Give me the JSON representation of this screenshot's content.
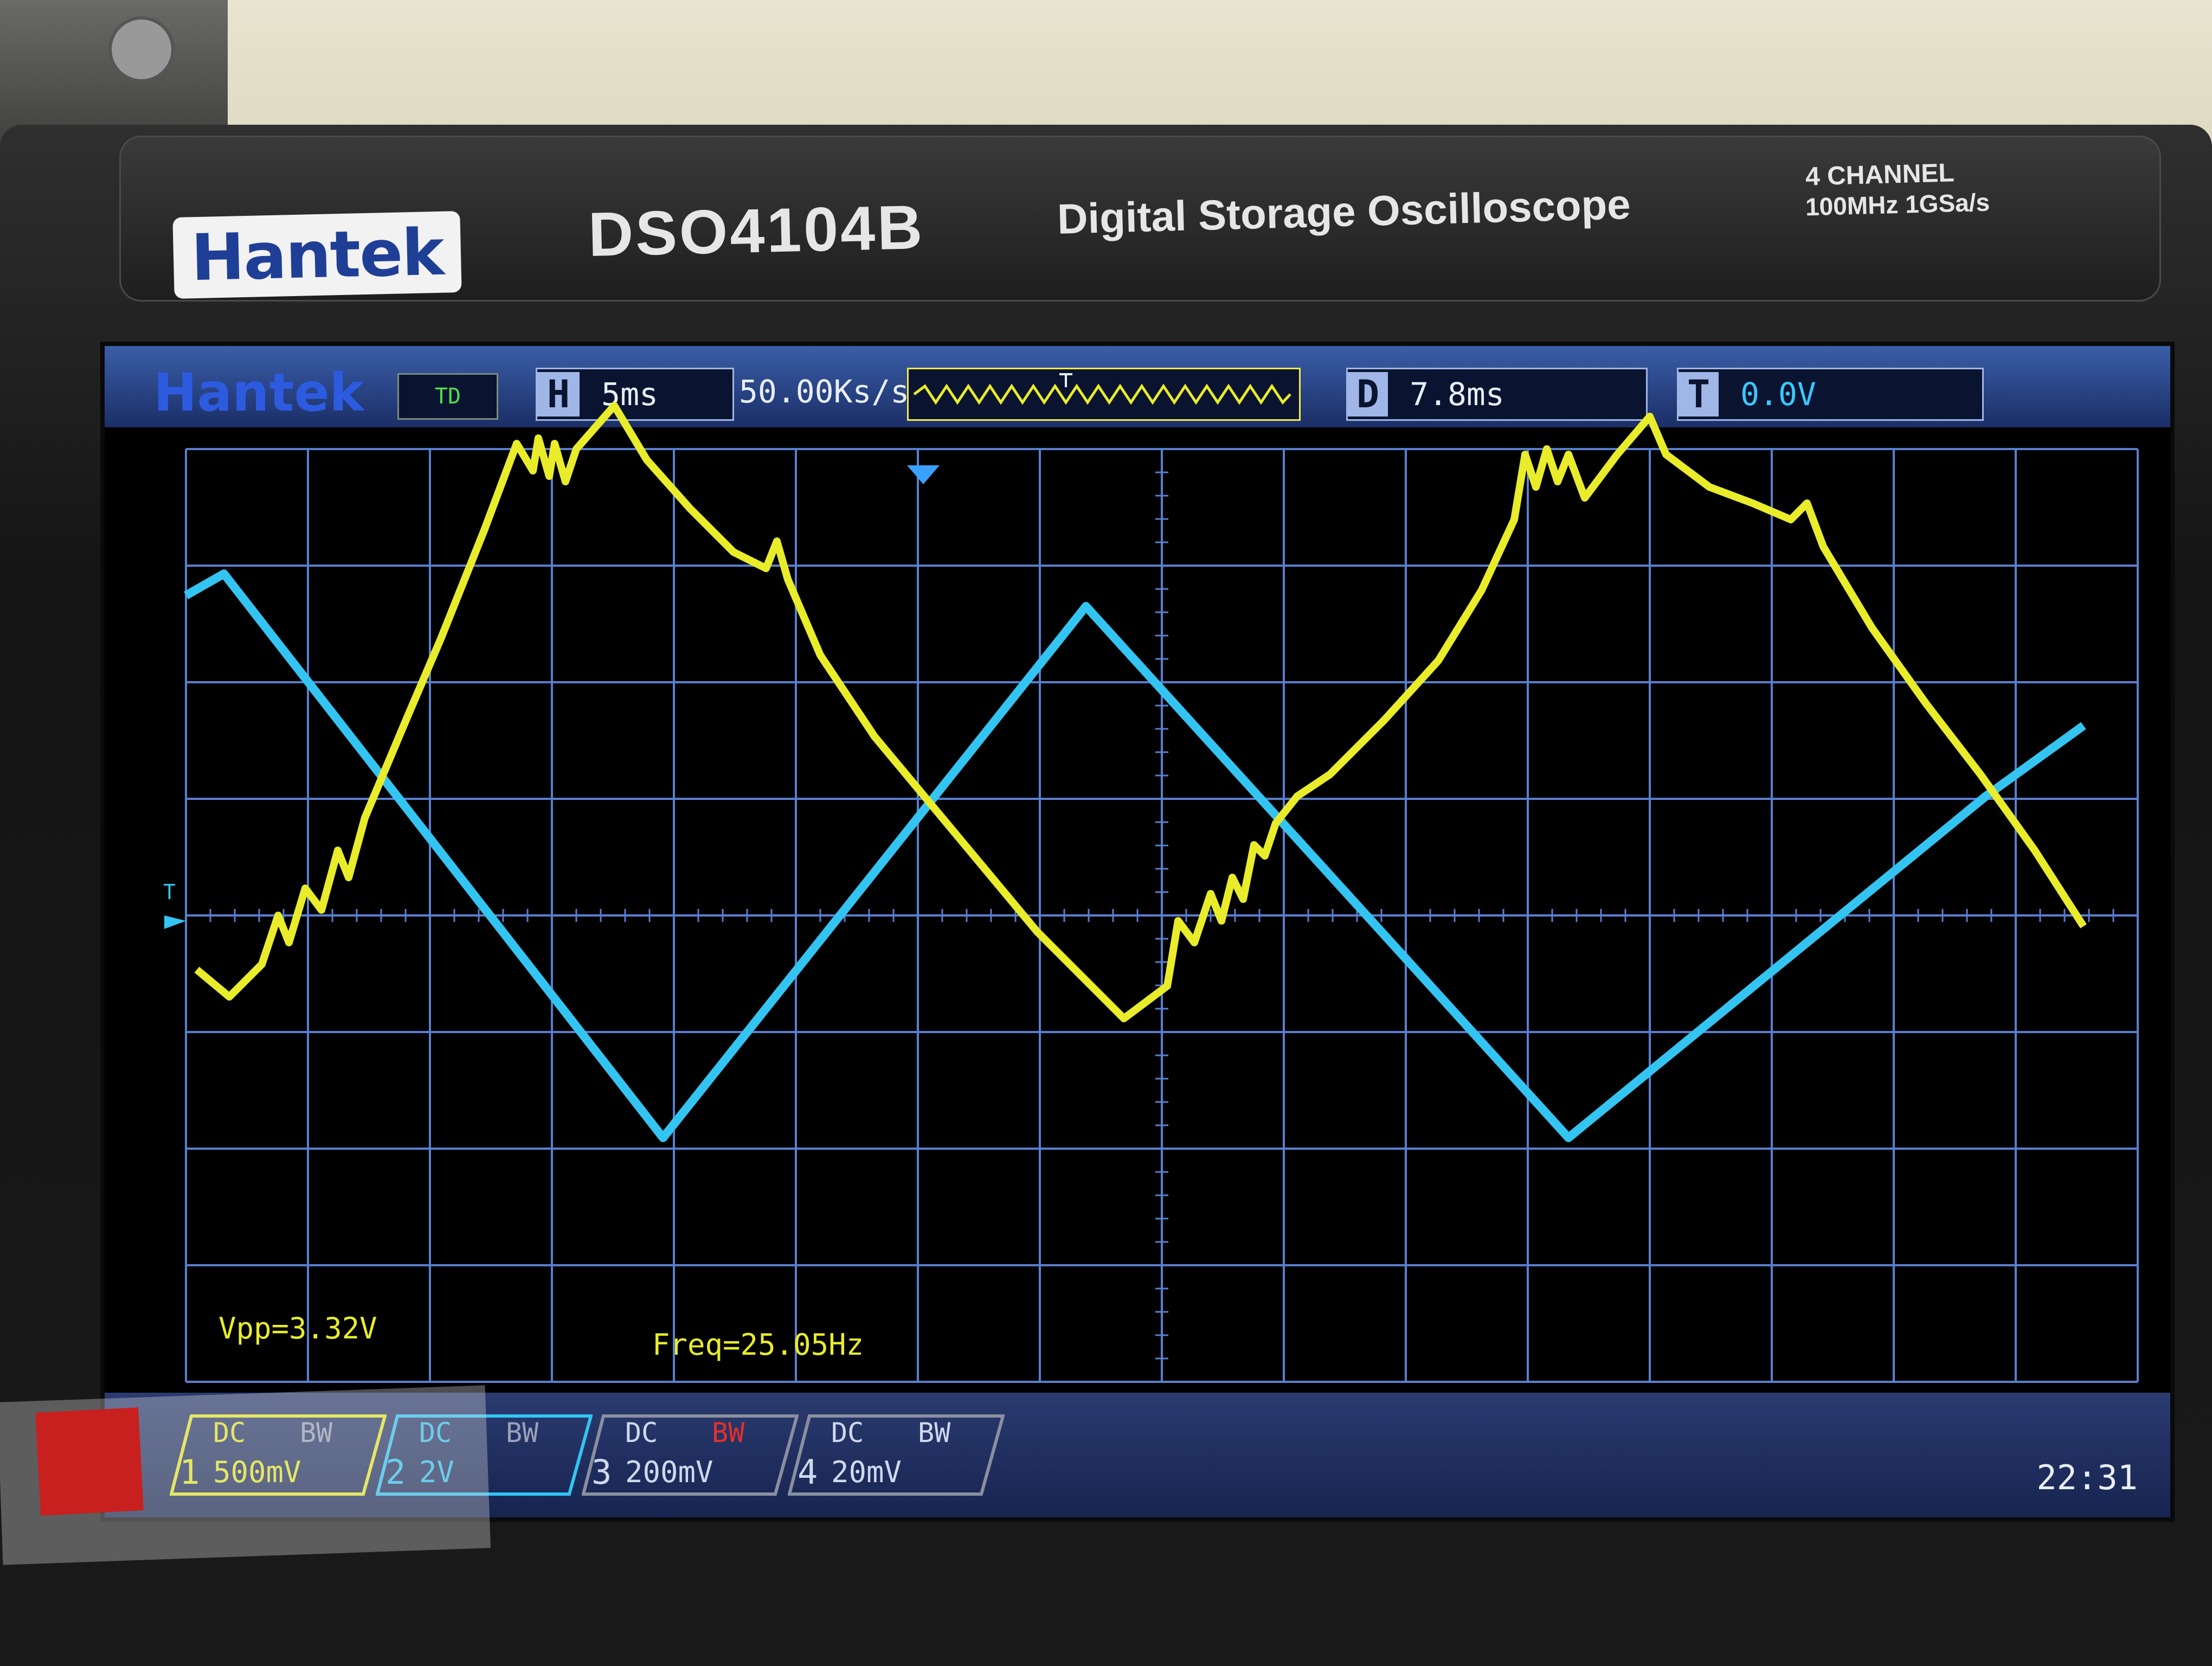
{
  "device": {
    "brand": "Hantek",
    "model": "DSO4104B",
    "product": "Digital Storage Oscilloscope",
    "spec_line1": "4 CHANNEL",
    "spec_line2": "100MHz 1GSa/s"
  },
  "status": {
    "logo": "Hantek",
    "trigger_state": "TD",
    "horizontal_label": "H",
    "timebase": "5ms",
    "sample_rate": "50.00Ks/s",
    "delay_label": "D",
    "delay": "7.8ms",
    "trigger_label": "T",
    "trigger_level": "0.0V"
  },
  "measurements": {
    "vpp": "Vpp=3.32V",
    "freq": "Freq=25.05Hz"
  },
  "channels": [
    {
      "num": "1",
      "coupling": "DC",
      "bw": "BW",
      "scale": "500mV",
      "color": "#e9ec2a",
      "bw_color": "#9aa0b8"
    },
    {
      "num": "2",
      "coupling": "DC",
      "bw": "BW",
      "scale": "2V",
      "color": "#33c4f2",
      "bw_color": "#9aa0b8"
    },
    {
      "num": "3",
      "coupling": "DC",
      "bw": "BW",
      "scale": "200mV",
      "color": "#8a8fa0",
      "bw_color": "#e5302a"
    },
    {
      "num": "4",
      "coupling": "DC",
      "bw": "BW",
      "scale": "20mV",
      "color": "#8a8fa0",
      "bw_color": "#9aa0b8"
    }
  ],
  "clock": "22:31",
  "colors": {
    "ch1": "#e9ec2a",
    "ch2": "#33c4f2",
    "grid": "#5a7fd0"
  }
}
